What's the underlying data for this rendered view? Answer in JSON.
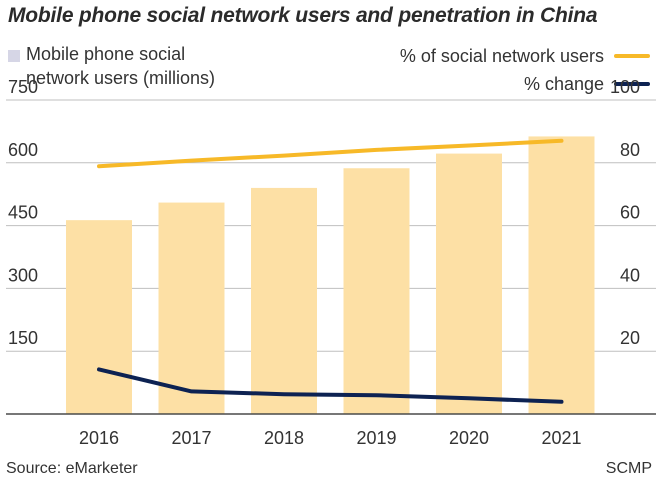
{
  "title": "Mobile phone social network users and penetration in China",
  "legend": {
    "bars_line1": "Mobile phone social",
    "bars_line2": "network users (millions)",
    "penetration": "% of social network users",
    "change": "% change"
  },
  "footer": {
    "source": "Source: eMarketer",
    "credit": "SCMP"
  },
  "colors": {
    "bar": "#fde0a5",
    "bar_legend": "#d6d6e6",
    "penetration_line": "#f7b928",
    "change_line": "#0d2252",
    "grid": "#bfbfbf"
  },
  "chart_data": {
    "type": "bar",
    "title": "Mobile phone social network users and penetration in China",
    "categories": [
      "2016",
      "2017",
      "2018",
      "2019",
      "2020",
      "2021"
    ],
    "series": [
      {
        "name": "Mobile phone social network users (millions)",
        "axis": "left",
        "kind": "bar",
        "values": [
          463,
          505,
          540,
          587,
          622,
          663
        ]
      },
      {
        "name": "% of social network users",
        "axis": "right",
        "kind": "line",
        "values": [
          78.9,
          80.7,
          82.3,
          84.1,
          85.5,
          87.0
        ]
      },
      {
        "name": "% change",
        "axis": "right",
        "kind": "line",
        "values": [
          14.2,
          7.2,
          6.3,
          6.0,
          5.0,
          3.9
        ]
      }
    ],
    "left_axis": {
      "ticks": [
        "150",
        "300",
        "450",
        "600",
        "750"
      ],
      "ylim": [
        0,
        750
      ]
    },
    "right_axis": {
      "ticks": [
        "20",
        "40",
        "60",
        "80",
        "100"
      ],
      "ylim": [
        0,
        100
      ]
    },
    "grid": true
  }
}
